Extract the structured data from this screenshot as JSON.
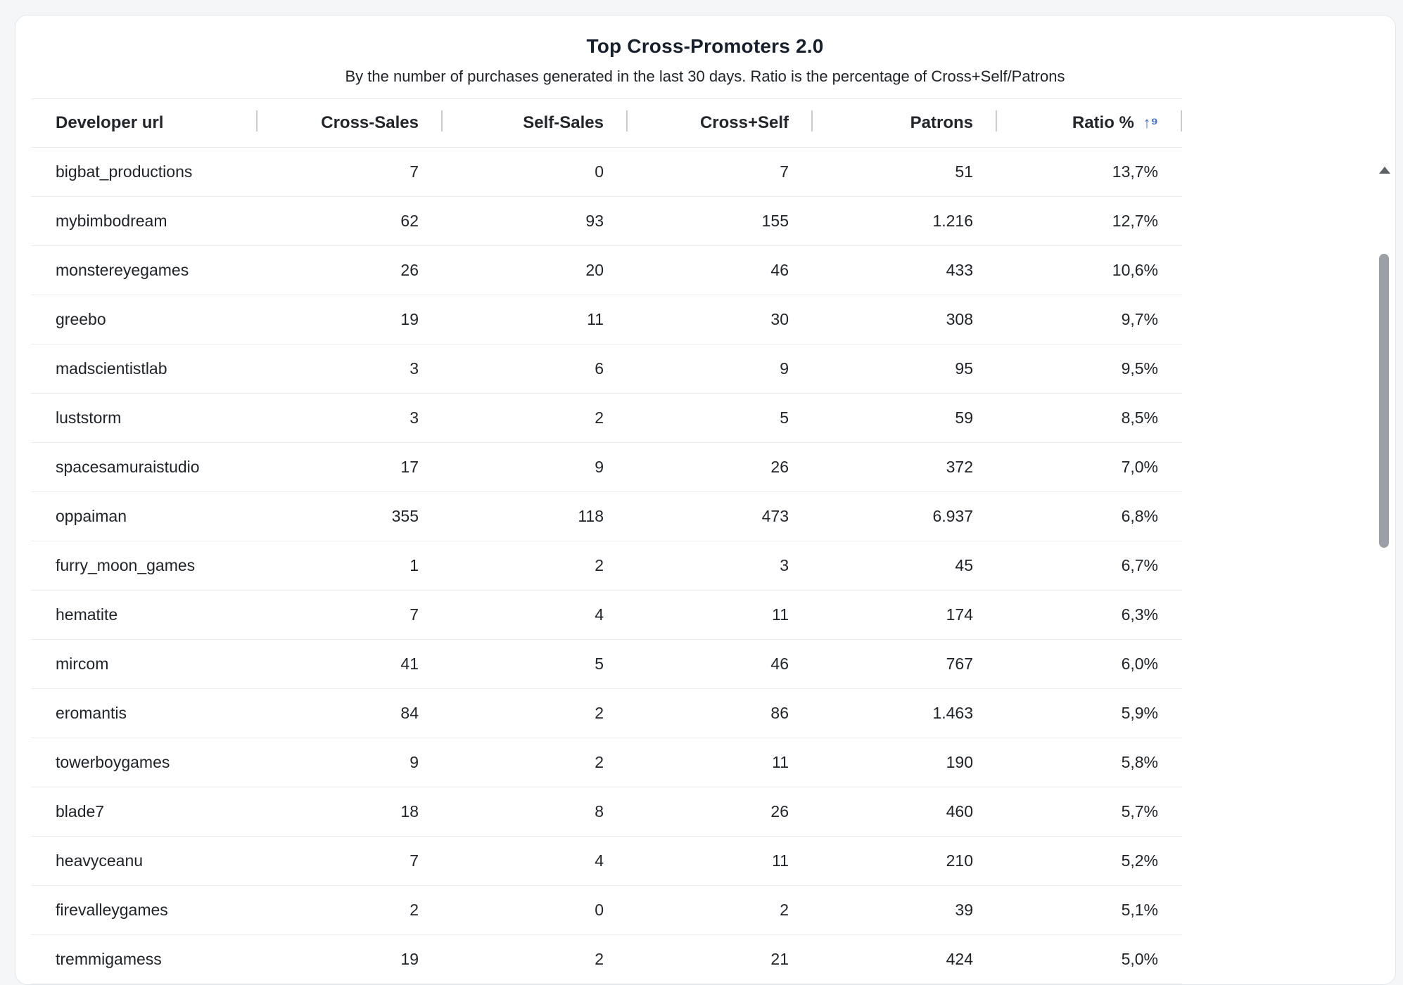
{
  "title": "Top Cross-Promoters 2.0",
  "subtitle": "By the number of purchases generated in the last 30 days. Ratio is the percentage of Cross+Self/Patrons",
  "columns": {
    "developer": "Developer url",
    "cross": "Cross-Sales",
    "self": "Self-Sales",
    "cross_self": "Cross+Self",
    "patrons": "Patrons",
    "ratio": "Ratio %",
    "ratio_sort_icon": "↑⁹"
  },
  "rows": [
    {
      "dev": "bigbat_productions",
      "cross": "7",
      "self": "0",
      "cs": "7",
      "patrons": "51",
      "ratio": "13,7%"
    },
    {
      "dev": "mybimbodream",
      "cross": "62",
      "self": "93",
      "cs": "155",
      "patrons": "1.216",
      "ratio": "12,7%"
    },
    {
      "dev": "monstereyegames",
      "cross": "26",
      "self": "20",
      "cs": "46",
      "patrons": "433",
      "ratio": "10,6%"
    },
    {
      "dev": "greebo",
      "cross": "19",
      "self": "11",
      "cs": "30",
      "patrons": "308",
      "ratio": "9,7%"
    },
    {
      "dev": "madscientistlab",
      "cross": "3",
      "self": "6",
      "cs": "9",
      "patrons": "95",
      "ratio": "9,5%"
    },
    {
      "dev": "luststorm",
      "cross": "3",
      "self": "2",
      "cs": "5",
      "patrons": "59",
      "ratio": "8,5%"
    },
    {
      "dev": "spacesamuraistudio",
      "cross": "17",
      "self": "9",
      "cs": "26",
      "patrons": "372",
      "ratio": "7,0%"
    },
    {
      "dev": "oppaiman",
      "cross": "355",
      "self": "118",
      "cs": "473",
      "patrons": "6.937",
      "ratio": "6,8%"
    },
    {
      "dev": "furry_moon_games",
      "cross": "1",
      "self": "2",
      "cs": "3",
      "patrons": "45",
      "ratio": "6,7%"
    },
    {
      "dev": "hematite",
      "cross": "7",
      "self": "4",
      "cs": "11",
      "patrons": "174",
      "ratio": "6,3%"
    },
    {
      "dev": "mircom",
      "cross": "41",
      "self": "5",
      "cs": "46",
      "patrons": "767",
      "ratio": "6,0%"
    },
    {
      "dev": "eromantis",
      "cross": "84",
      "self": "2",
      "cs": "86",
      "patrons": "1.463",
      "ratio": "5,9%"
    },
    {
      "dev": "towerboygames",
      "cross": "9",
      "self": "2",
      "cs": "11",
      "patrons": "190",
      "ratio": "5,8%"
    },
    {
      "dev": "blade7",
      "cross": "18",
      "self": "8",
      "cs": "26",
      "patrons": "460",
      "ratio": "5,7%"
    },
    {
      "dev": "heavyceanu",
      "cross": "7",
      "self": "4",
      "cs": "11",
      "patrons": "210",
      "ratio": "5,2%"
    },
    {
      "dev": "firevalleygames",
      "cross": "2",
      "self": "0",
      "cs": "2",
      "patrons": "39",
      "ratio": "5,1%"
    },
    {
      "dev": "tremmigamess",
      "cross": "19",
      "self": "2",
      "cs": "21",
      "patrons": "424",
      "ratio": "5,0%"
    }
  ]
}
